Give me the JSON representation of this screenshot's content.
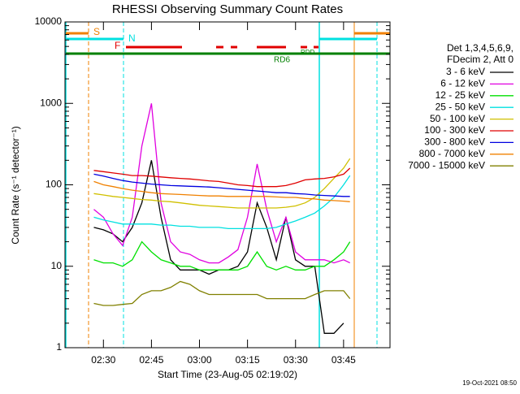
{
  "chart_data": {
    "type": "line",
    "title": "RHESSI Observing Summary Count Rates",
    "xlabel": "Start Time (23-Aug-05 02:19:02)",
    "ylabel": "Count Rate (s⁻¹ detector⁻¹)",
    "legend_title": [
      "Det 1,3,4,5,6,9,",
      "FDecim 2, Att 0"
    ],
    "footer": "19-Oct-2021 08:50",
    "annotations": [
      "S",
      "N",
      "F",
      "RDD",
      "RD6"
    ],
    "ylog": true,
    "ylim": [
      1,
      10000
    ],
    "yticks": [
      1,
      10,
      100,
      1000,
      10000
    ],
    "xlim": [
      138,
      239.5
    ],
    "xticks": [
      {
        "value": 150,
        "label": "02:30"
      },
      {
        "value": 165,
        "label": "02:45"
      },
      {
        "value": 180,
        "label": "03:00"
      },
      {
        "value": 195,
        "label": "03:15"
      },
      {
        "value": 210,
        "label": "03:30"
      },
      {
        "value": 225,
        "label": "03:45"
      }
    ],
    "x": [
      147,
      150,
      153,
      156,
      159,
      162,
      165,
      168,
      171,
      174,
      177,
      180,
      183,
      186,
      189,
      192,
      195,
      198,
      201,
      204,
      207,
      210,
      213,
      216,
      219,
      222,
      225,
      227
    ],
    "series": [
      {
        "name": "3 - 6 keV",
        "color": "#000000",
        "values": [
          30,
          28,
          25,
          20,
          30,
          60,
          200,
          40,
          12,
          9,
          9,
          9,
          8,
          9,
          9,
          10,
          15,
          60,
          30,
          12,
          40,
          12,
          10,
          10,
          1.5,
          1.5,
          2,
          null
        ]
      },
      {
        "name": "6 - 12 keV",
        "color": "#e000e0",
        "values": [
          50,
          40,
          25,
          18,
          40,
          300,
          1000,
          60,
          20,
          15,
          14,
          12,
          11,
          11,
          13,
          16,
          40,
          180,
          50,
          20,
          40,
          15,
          12,
          12,
          12,
          11,
          12,
          11
        ]
      },
      {
        "name": "12 - 25 keV",
        "color": "#00e000",
        "values": [
          12,
          11,
          11,
          10,
          12,
          20,
          15,
          12,
          11,
          10,
          10,
          9,
          9,
          9,
          9,
          9,
          10,
          15,
          10,
          9,
          10,
          9,
          9,
          10,
          10,
          12,
          15,
          20
        ]
      },
      {
        "name": "25 - 50 keV",
        "color": "#00e0e0",
        "values": [
          40,
          37,
          35,
          33,
          33,
          33,
          33,
          32,
          32,
          31,
          31,
          30,
          30,
          30,
          29,
          29,
          29,
          29,
          29,
          30,
          33,
          36,
          40,
          45,
          55,
          70,
          100,
          130
        ]
      },
      {
        "name": "50 - 100 keV",
        "color": "#d0c000",
        "values": [
          78,
          75,
          72,
          70,
          68,
          66,
          65,
          63,
          62,
          60,
          58,
          56,
          55,
          54,
          53,
          52,
          52,
          52,
          52,
          52,
          53,
          55,
          60,
          70,
          90,
          120,
          160,
          210
        ]
      },
      {
        "name": "100 - 300 keV",
        "color": "#e00000",
        "values": [
          150,
          145,
          140,
          135,
          130,
          130,
          128,
          125,
          122,
          120,
          118,
          115,
          112,
          110,
          105,
          100,
          98,
          95,
          95,
          95,
          98,
          105,
          115,
          118,
          120,
          125,
          135,
          160
        ]
      },
      {
        "name": "300 - 800 keV",
        "color": "#0000e0",
        "values": [
          135,
          128,
          120,
          113,
          108,
          105,
          102,
          100,
          98,
          97,
          96,
          95,
          94,
          92,
          90,
          88,
          86,
          84,
          82,
          80,
          80,
          78,
          77,
          75,
          74,
          73,
          72,
          72
        ]
      },
      {
        "name": "800 - 7000 keV",
        "color": "#f08000",
        "values": [
          110,
          100,
          95,
          90,
          86,
          83,
          80,
          78,
          77,
          76,
          75,
          74,
          73,
          73,
          72,
          72,
          72,
          72,
          72,
          71,
          70,
          70,
          68,
          67,
          65,
          64,
          63,
          62
        ]
      },
      {
        "name": "7000 - 15000 keV",
        "color": "#808000",
        "values": [
          3.5,
          3.3,
          3.3,
          3.4,
          3.5,
          4.5,
          5,
          5,
          5.5,
          6.5,
          6,
          5,
          4.5,
          4.5,
          4.5,
          4.5,
          4.5,
          4.5,
          4,
          4,
          4,
          4,
          4,
          4.5,
          5,
          5,
          5,
          4
        ]
      }
    ]
  }
}
